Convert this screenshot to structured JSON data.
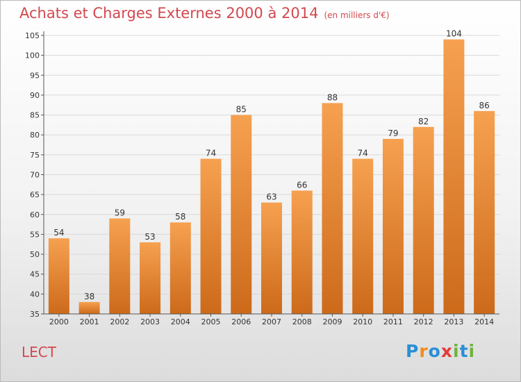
{
  "header": {
    "title": "Achats et Charges Externes 2000 à 2014",
    "unit": "(en milliers d'€)"
  },
  "footer": {
    "commune": "LECT",
    "brand": "Proxiti",
    "brand_letters": [
      {
        "ch": "P",
        "color": "#2a8fd6"
      },
      {
        "ch": "r",
        "color": "#f08c1e"
      },
      {
        "ch": "o",
        "color": "#2a8fd6"
      },
      {
        "ch": "x",
        "color": "#e43a3a"
      },
      {
        "ch": "i",
        "color": "#6db33f"
      },
      {
        "ch": "t",
        "color": "#2a8fd6"
      },
      {
        "ch": "i",
        "color": "#6db33f"
      }
    ]
  },
  "colors": {
    "bar_light": "#f6a150",
    "bar_dark": "#cc6a1a",
    "title": "#d2484e",
    "grid": "#d9d9d9"
  },
  "chart_data": {
    "type": "bar",
    "title": "Achats et Charges Externes 2000 à 2014",
    "subtitle": "(en milliers d'€)",
    "categories": [
      "2000",
      "2001",
      "2002",
      "2003",
      "2004",
      "2005",
      "2006",
      "2007",
      "2008",
      "2009",
      "2010",
      "2011",
      "2012",
      "2013",
      "2014"
    ],
    "values": [
      54,
      38,
      59,
      53,
      58,
      74,
      85,
      63,
      66,
      88,
      74,
      79,
      82,
      104,
      86
    ],
    "ylim": [
      35,
      105
    ],
    "yticks": [
      35,
      40,
      45,
      50,
      55,
      60,
      65,
      70,
      75,
      80,
      85,
      90,
      95,
      100,
      105
    ],
    "grid": true,
    "data_labels": true
  }
}
